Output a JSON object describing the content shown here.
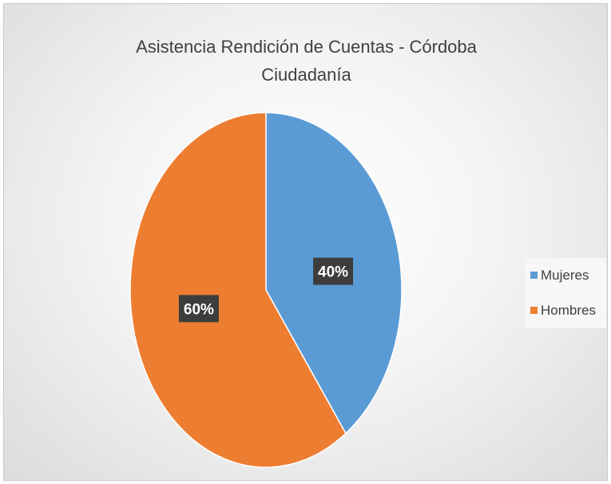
{
  "chart_data": {
    "type": "pie",
    "title": "Asistencia  Rendición de Cuentas - Córdoba\nCiudadanía",
    "categories": [
      "Mujeres",
      "Hombres"
    ],
    "values": [
      40,
      60
    ],
    "data_labels": [
      "40%",
      "60%"
    ],
    "colors": [
      "#5b9bd5",
      "#ed7d31"
    ],
    "legend_position": "right",
    "start_angle_deg": 0,
    "direction": "clockwise"
  }
}
